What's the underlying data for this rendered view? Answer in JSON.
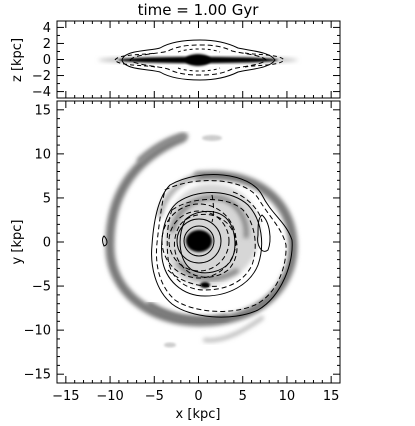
{
  "chart_data": [
    {
      "type": "heatmap",
      "title": "time =   1.00 Gyr",
      "xlabel": "",
      "ylabel": "z [kpc]",
      "xlim": [
        -16,
        16
      ],
      "ylim": [
        -4.8,
        4.8
      ],
      "x_ticks": [
        -15,
        -10,
        -5,
        0,
        5,
        10,
        15
      ],
      "y_ticks": [
        4,
        2,
        0,
        -2,
        -4
      ],
      "y_tick_labels": [
        "4",
        "2",
        "0",
        "−2",
        "−4"
      ],
      "grid": false,
      "legend": "none"
    },
    {
      "type": "heatmap",
      "title": "",
      "xlabel": "x [kpc]",
      "ylabel": "y [kpc]",
      "xlim": [
        -16,
        16
      ],
      "ylim": [
        -16,
        16
      ],
      "x_ticks": [
        -15,
        -10,
        -5,
        0,
        5,
        10,
        15
      ],
      "x_tick_labels": [
        "−15",
        "−10",
        "−5",
        "0",
        "5",
        "10",
        "15"
      ],
      "y_ticks": [
        15,
        10,
        5,
        0,
        -5,
        -10,
        -15
      ],
      "y_tick_labels": [
        "15",
        "10",
        "5",
        "0",
        "−5",
        "−10",
        "−15"
      ],
      "grid": false,
      "legend": "none"
    }
  ]
}
